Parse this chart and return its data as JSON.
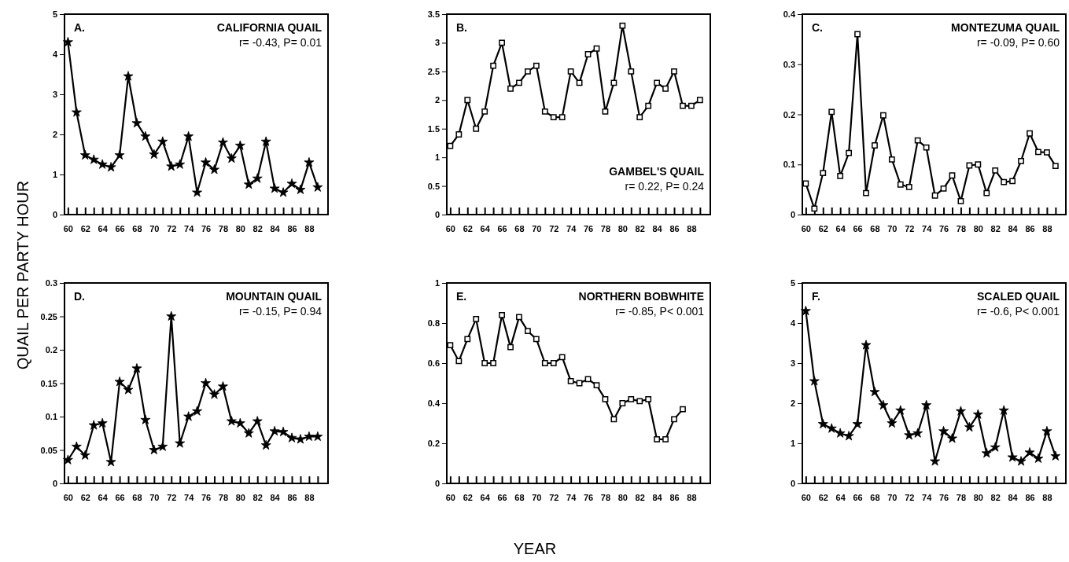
{
  "chart_data": [
    {
      "type": "line",
      "title": "CALIFORNIA QUAIL",
      "subtitle": "r= -0.43,  P= 0.01",
      "annotations": [
        "A."
      ],
      "ylabel": "QUAIL PER PARTY HOUR",
      "x": [
        60,
        61,
        62,
        63,
        64,
        65,
        66,
        67,
        68,
        69,
        70,
        71,
        72,
        73,
        74,
        75,
        76,
        77,
        78,
        79,
        80,
        81,
        82,
        83,
        84,
        85,
        86,
        87,
        88,
        89
      ],
      "series": [
        {
          "color": "#000000",
          "values": [
            4.3,
            2.55,
            1.48,
            1.37,
            1.25,
            1.18,
            1.48,
            3.45,
            2.28,
            1.95,
            1.5,
            1.82,
            1.2,
            1.25,
            1.95,
            0.55,
            1.3,
            1.12,
            1.8,
            1.4,
            1.72,
            0.75,
            0.9,
            1.82,
            0.65,
            0.55,
            0.77,
            0.62,
            1.3,
            0.68
          ]
        }
      ],
      "xlim": [
        59.6,
        90.2
      ],
      "xticks": [
        60,
        {
          "value": 61,
          "label": null
        },
        62,
        {
          "value": 63,
          "label": null
        },
        64,
        {
          "value": 65,
          "label": null
        },
        66,
        {
          "value": 67,
          "label": null
        },
        68,
        {
          "value": 69,
          "label": null
        },
        70,
        {
          "value": 71,
          "label": null
        },
        72,
        {
          "value": 73,
          "label": null
        },
        74,
        {
          "value": 75,
          "label": null
        },
        76,
        {
          "value": 77,
          "label": null
        },
        78,
        {
          "value": 79,
          "label": null
        },
        80,
        {
          "value": 81,
          "label": null
        },
        82,
        {
          "value": 83,
          "label": null
        },
        84,
        {
          "value": 85,
          "label": null
        },
        86,
        {
          "value": 87,
          "label": null
        },
        88,
        {
          "value": 89,
          "label": null
        }
      ],
      "ylim": [
        0,
        5
      ],
      "yticks": [
        0,
        1,
        2,
        3,
        4,
        5
      ],
      "marker": "star",
      "line_style": "solid"
    },
    {
      "type": "line",
      "title": "GAMBEL'S QUAIL",
      "subtitle": "r= 0.22, P= 0.24",
      "annotations": [
        "B."
      ],
      "x": [
        60,
        61,
        62,
        63,
        64,
        65,
        66,
        67,
        68,
        69,
        70,
        71,
        72,
        73,
        74,
        75,
        76,
        77,
        78,
        79,
        80,
        81,
        82,
        83,
        84,
        85,
        86,
        87,
        88,
        89
      ],
      "series": [
        {
          "color": "#000000",
          "values": [
            1.2,
            1.4,
            2.0,
            1.5,
            1.8,
            2.6,
            3.0,
            2.2,
            2.3,
            2.5,
            2.6,
            1.8,
            1.7,
            1.7,
            2.5,
            2.3,
            2.8,
            2.9,
            1.8,
            2.3,
            3.3,
            2.5,
            1.7,
            1.9,
            2.3,
            2.2,
            2.5,
            1.9,
            1.9,
            2.0
          ]
        }
      ],
      "xlim": [
        59.6,
        90.2
      ],
      "xticks": [
        60,
        {
          "value": 61,
          "label": null
        },
        62,
        {
          "value": 63,
          "label": null
        },
        64,
        {
          "value": 65,
          "label": null
        },
        66,
        {
          "value": 67,
          "label": null
        },
        68,
        {
          "value": 69,
          "label": null
        },
        70,
        {
          "value": 71,
          "label": null
        },
        72,
        {
          "value": 73,
          "label": null
        },
        74,
        {
          "value": 75,
          "label": null
        },
        76,
        {
          "value": 77,
          "label": null
        },
        78,
        {
          "value": 79,
          "label": null
        },
        80,
        {
          "value": 81,
          "label": null
        },
        82,
        {
          "value": 83,
          "label": null
        },
        84,
        {
          "value": 85,
          "label": null
        },
        86,
        {
          "value": 87,
          "label": null
        },
        88,
        {
          "value": 89,
          "label": null
        }
      ],
      "ylim": [
        0,
        3.5
      ],
      "yticks": [
        0,
        0.5,
        1,
        1.5,
        2,
        2.5,
        3,
        3.5
      ],
      "marker": "square",
      "line_style": "solid"
    },
    {
      "type": "line",
      "title": "MONTEZUMA QUAIL",
      "subtitle": "r= -0.09, P= 0.60",
      "annotations": [
        "C."
      ],
      "x": [
        60,
        61,
        62,
        63,
        64,
        65,
        66,
        67,
        68,
        69,
        70,
        71,
        72,
        73,
        74,
        75,
        76,
        77,
        78,
        79,
        80,
        81,
        82,
        83,
        84,
        85,
        86,
        87,
        88,
        89
      ],
      "series": [
        {
          "color": "#000000",
          "values": [
            0.062,
            0.012,
            0.083,
            0.205,
            0.077,
            0.123,
            0.36,
            0.043,
            0.138,
            0.198,
            0.11,
            0.06,
            0.055,
            0.148,
            0.134,
            0.038,
            0.052,
            0.078,
            0.027,
            0.098,
            0.1,
            0.043,
            0.088,
            0.065,
            0.067,
            0.107,
            0.162,
            0.125,
            0.124,
            0.097
          ]
        }
      ],
      "xlim": [
        59.6,
        90.2
      ],
      "xticks": [
        60,
        {
          "value": 61,
          "label": null
        },
        62,
        {
          "value": 63,
          "label": null
        },
        64,
        {
          "value": 65,
          "label": null
        },
        66,
        {
          "value": 67,
          "label": null
        },
        68,
        {
          "value": 69,
          "label": null
        },
        70,
        {
          "value": 71,
          "label": null
        },
        72,
        {
          "value": 73,
          "label": null
        },
        74,
        {
          "value": 75,
          "label": null
        },
        76,
        {
          "value": 77,
          "label": null
        },
        78,
        {
          "value": 79,
          "label": null
        },
        80,
        {
          "value": 81,
          "label": null
        },
        82,
        {
          "value": 83,
          "label": null
        },
        84,
        {
          "value": 85,
          "label": null
        },
        86,
        {
          "value": 87,
          "label": null
        },
        88,
        {
          "value": 89,
          "label": null
        }
      ],
      "ylim": [
        0,
        0.4
      ],
      "yticks": [
        0,
        0.1,
        0.2,
        0.3,
        0.4
      ],
      "marker": "square",
      "line_style": "solid"
    },
    {
      "type": "line",
      "title": "MOUNTAIN QUAIL",
      "subtitle": "r= -0.15, P= 0.94",
      "annotations": [
        "D."
      ],
      "x": [
        60,
        61,
        62,
        63,
        64,
        65,
        66,
        67,
        68,
        69,
        70,
        71,
        72,
        73,
        74,
        75,
        76,
        77,
        78,
        79,
        80,
        81,
        82,
        83,
        84,
        85,
        86,
        87,
        88,
        89
      ],
      "series": [
        {
          "color": "#000000",
          "values": [
            0.035,
            0.055,
            0.042,
            0.087,
            0.09,
            0.032,
            0.152,
            0.14,
            0.172,
            0.095,
            0.05,
            0.055,
            0.25,
            0.06,
            0.1,
            0.108,
            0.15,
            0.133,
            0.145,
            0.093,
            0.09,
            0.075,
            0.093,
            0.057,
            0.078,
            0.077,
            0.068,
            0.066,
            0.07,
            0.07
          ]
        }
      ],
      "xlim": [
        59.6,
        90.2
      ],
      "xticks": [
        60,
        {
          "value": 61,
          "label": null
        },
        62,
        {
          "value": 63,
          "label": null
        },
        64,
        {
          "value": 65,
          "label": null
        },
        66,
        {
          "value": 67,
          "label": null
        },
        68,
        {
          "value": 69,
          "label": null
        },
        70,
        {
          "value": 71,
          "label": null
        },
        72,
        {
          "value": 73,
          "label": null
        },
        74,
        {
          "value": 75,
          "label": null
        },
        76,
        {
          "value": 77,
          "label": null
        },
        78,
        {
          "value": 79,
          "label": null
        },
        80,
        {
          "value": 81,
          "label": null
        },
        82,
        {
          "value": 83,
          "label": null
        },
        84,
        {
          "value": 85,
          "label": null
        },
        86,
        {
          "value": 87,
          "label": null
        },
        88,
        {
          "value": 89,
          "label": null
        }
      ],
      "ylim": [
        0,
        0.3
      ],
      "yticks": [
        0,
        0.05,
        0.1,
        0.15,
        0.2,
        0.25,
        0.3
      ],
      "marker": "star",
      "line_style": "solid"
    },
    {
      "type": "line",
      "title": "NORTHERN BOBWHITE",
      "subtitle": "r= -0.85, P< 0.001",
      "annotations": [
        "E."
      ],
      "xlabel": "YEAR",
      "x": [
        60,
        61,
        62,
        63,
        64,
        65,
        66,
        67,
        68,
        69,
        70,
        71,
        72,
        73,
        74,
        75,
        76,
        77,
        78,
        79,
        80,
        81,
        82,
        83,
        84,
        85,
        86,
        87
      ],
      "series": [
        {
          "color": "#000000",
          "values": [
            0.69,
            0.61,
            0.72,
            0.82,
            0.6,
            0.6,
            0.84,
            0.68,
            0.83,
            0.76,
            0.72,
            0.6,
            0.6,
            0.63,
            0.51,
            0.5,
            0.52,
            0.49,
            0.42,
            0.32,
            0.4,
            0.42,
            0.41,
            0.42,
            0.22,
            0.22,
            0.32,
            0.37
          ]
        }
      ],
      "xlim": [
        59.6,
        90.2
      ],
      "xticks": [
        60,
        {
          "value": 61,
          "label": null
        },
        62,
        {
          "value": 63,
          "label": null
        },
        64,
        {
          "value": 65,
          "label": null
        },
        66,
        {
          "value": 67,
          "label": null
        },
        68,
        {
          "value": 69,
          "label": null
        },
        70,
        {
          "value": 71,
          "label": null
        },
        72,
        {
          "value": 73,
          "label": null
        },
        74,
        {
          "value": 75,
          "label": null
        },
        76,
        {
          "value": 77,
          "label": null
        },
        78,
        {
          "value": 79,
          "label": null
        },
        80,
        {
          "value": 81,
          "label": null
        },
        82,
        {
          "value": 83,
          "label": null
        },
        84,
        {
          "value": 85,
          "label": null
        },
        86,
        {
          "value": 87,
          "label": null
        },
        88,
        {
          "value": 89,
          "label": null
        }
      ],
      "ylim": [
        0,
        1
      ],
      "yticks": [
        0,
        0.2,
        0.4,
        0.6,
        0.8,
        1
      ],
      "marker": "square",
      "line_style": "solid"
    },
    {
      "type": "line",
      "title": "SCALED QUAIL",
      "subtitle": "r= -0.6, P< 0.001",
      "annotations": [
        "F."
      ],
      "x": [
        60,
        61,
        62,
        63,
        64,
        65,
        66,
        67,
        68,
        69,
        70,
        71,
        72,
        73,
        74,
        75,
        76,
        77,
        78,
        79,
        80,
        81,
        82,
        83,
        84,
        85,
        86,
        87,
        88,
        89
      ],
      "series": [
        {
          "color": "#000000",
          "values": [
            4.3,
            2.55,
            1.48,
            1.37,
            1.25,
            1.18,
            1.48,
            3.45,
            2.28,
            1.95,
            1.5,
            1.82,
            1.2,
            1.25,
            1.95,
            0.55,
            1.3,
            1.12,
            1.8,
            1.4,
            1.72,
            0.75,
            0.9,
            1.82,
            0.65,
            0.55,
            0.77,
            0.62,
            1.3,
            0.68
          ]
        }
      ],
      "xlim": [
        59.6,
        90.2
      ],
      "xticks": [
        60,
        {
          "value": 61,
          "label": null
        },
        62,
        {
          "value": 63,
          "label": null
        },
        64,
        {
          "value": 65,
          "label": null
        },
        66,
        {
          "value": 67,
          "label": null
        },
        68,
        {
          "value": 69,
          "label": null
        },
        70,
        {
          "value": 71,
          "label": null
        },
        72,
        {
          "value": 73,
          "label": null
        },
        74,
        {
          "value": 75,
          "label": null
        },
        76,
        {
          "value": 77,
          "label": null
        },
        78,
        {
          "value": 79,
          "label": null
        },
        80,
        {
          "value": 81,
          "label": null
        },
        82,
        {
          "value": 83,
          "label": null
        },
        84,
        {
          "value": 85,
          "label": null
        },
        86,
        {
          "value": 87,
          "label": null
        },
        88,
        {
          "value": 89,
          "label": null
        }
      ],
      "ylim": [
        0,
        5
      ],
      "yticks": [
        0,
        1,
        2,
        3,
        4,
        5
      ],
      "marker": "star",
      "line_style": "solid"
    }
  ]
}
